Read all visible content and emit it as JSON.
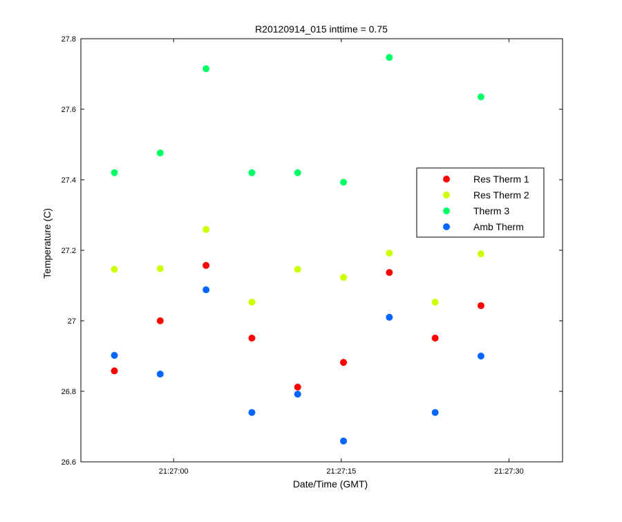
{
  "chart_data": {
    "type": "scatter",
    "title": "R20120914_015 inttime = 0.75",
    "xlabel": "Date/Time (GMT)",
    "ylabel": "Temperature (C)",
    "xlim": [
      "21:26:51.7",
      "21:27:34.8"
    ],
    "ylim": [
      26.6,
      27.8
    ],
    "x_ticks": [
      "21:27:00",
      "21:27:15",
      "21:27:30"
    ],
    "y_ticks": [
      "26.6",
      "26.8",
      "27",
      "27.2",
      "27.4",
      "27.6",
      "27.8"
    ],
    "grid": false,
    "legend_position": "right",
    "x": [
      "21:26:54.7",
      "21:26:58.8",
      "21:27:02.9",
      "21:27:07.0",
      "21:27:11.1",
      "21:27:15.2",
      "21:27:19.3",
      "21:27:23.4",
      "21:27:27.5"
    ],
    "series": [
      {
        "name": "Res Therm 1",
        "color": "#ff0000",
        "x": [
          "21:26:54.7",
          "21:26:58.8",
          "21:27:02.9",
          "21:27:07.0",
          "21:27:11.1",
          "21:27:15.2",
          "21:27:19.3",
          "21:27:23.4",
          "21:27:27.5"
        ],
        "y": [
          26.858,
          27.0,
          27.157,
          26.951,
          26.812,
          26.882,
          27.137,
          26.951,
          27.043
        ]
      },
      {
        "name": "Res Therm 2",
        "color": "#ccff00",
        "x": [
          "21:26:54.7",
          "21:26:58.8",
          "21:27:02.9",
          "21:27:07.0",
          "21:27:11.1",
          "21:27:15.2",
          "21:27:19.3",
          "21:27:23.4",
          "21:27:27.5"
        ],
        "y": [
          27.146,
          27.148,
          27.259,
          27.053,
          27.146,
          27.123,
          27.192,
          27.053,
          27.19
        ]
      },
      {
        "name": "Therm 3",
        "color": "#00ff66",
        "x": [
          "21:26:54.7",
          "21:26:58.8",
          "21:27:02.9",
          "21:27:07.0",
          "21:27:11.1",
          "21:27:15.2",
          "21:27:19.3",
          "21:27:27.5"
        ],
        "y": [
          27.42,
          27.476,
          27.715,
          27.42,
          27.42,
          27.393,
          27.747,
          27.635
        ]
      },
      {
        "name": "Amb Therm",
        "color": "#0066ff",
        "x": [
          "21:26:54.7",
          "21:26:58.8",
          "21:27:02.9",
          "21:27:07.0",
          "21:27:11.1",
          "21:27:15.2",
          "21:27:19.3",
          "21:27:23.4",
          "21:27:27.5"
        ],
        "y": [
          26.902,
          26.849,
          27.088,
          26.74,
          26.792,
          26.659,
          27.01,
          26.74,
          26.9
        ]
      }
    ]
  }
}
